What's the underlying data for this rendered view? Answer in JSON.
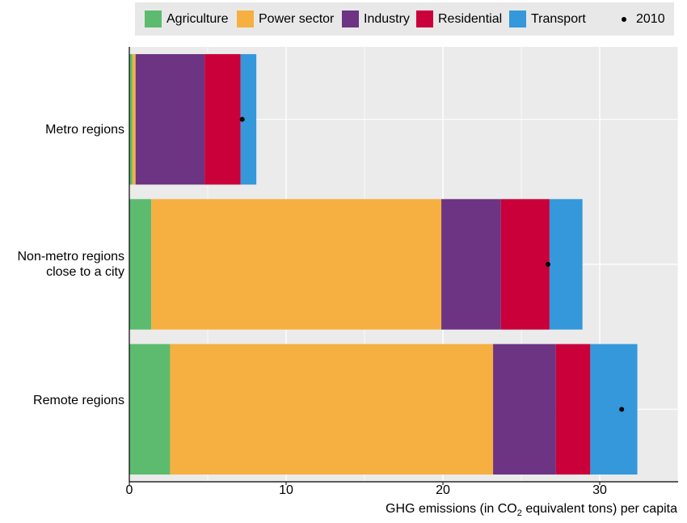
{
  "legend": {
    "items": [
      {
        "name": "Agriculture",
        "color": "#5dbb6f"
      },
      {
        "name": "Power sector",
        "color": "#f5b041"
      },
      {
        "name": "Industry",
        "color": "#6c3483"
      },
      {
        "name": "Residential",
        "color": "#c9003a"
      },
      {
        "name": "Transport",
        "color": "#3498db"
      }
    ],
    "marker_label": "2010"
  },
  "chart_data": {
    "type": "bar",
    "orientation": "horizontal",
    "stacked": true,
    "categories": [
      "Metro regions",
      "Non-metro regions close to a city",
      "Remote regions"
    ],
    "category_lines": [
      [
        "Metro regions"
      ],
      [
        "Non-metro regions",
        "close to a city"
      ],
      [
        "Remote regions"
      ]
    ],
    "series": [
      {
        "name": "Agriculture",
        "color": "#5dbb6f",
        "values": [
          0.2,
          1.4,
          2.6
        ]
      },
      {
        "name": "Power sector",
        "color": "#f5b041",
        "values": [
          0.2,
          18.5,
          20.6
        ]
      },
      {
        "name": "Industry",
        "color": "#6c3483",
        "values": [
          4.4,
          3.8,
          4.0
        ]
      },
      {
        "name": "Residential",
        "color": "#c9003a",
        "values": [
          2.3,
          3.1,
          2.2
        ]
      },
      {
        "name": "Transport",
        "color": "#3498db",
        "values": [
          1.0,
          2.1,
          3.0
        ]
      }
    ],
    "markers": {
      "name": "2010",
      "values": [
        7.2,
        26.7,
        31.4
      ]
    },
    "xlim": [
      0,
      35
    ],
    "xticks": [
      0,
      10,
      20,
      30
    ],
    "xlabel_parts": {
      "pre": "GHG emissions (in CO",
      "sub": "2",
      "post": " equivalent tons) per capita"
    },
    "grid": true,
    "legend_position": "top"
  }
}
